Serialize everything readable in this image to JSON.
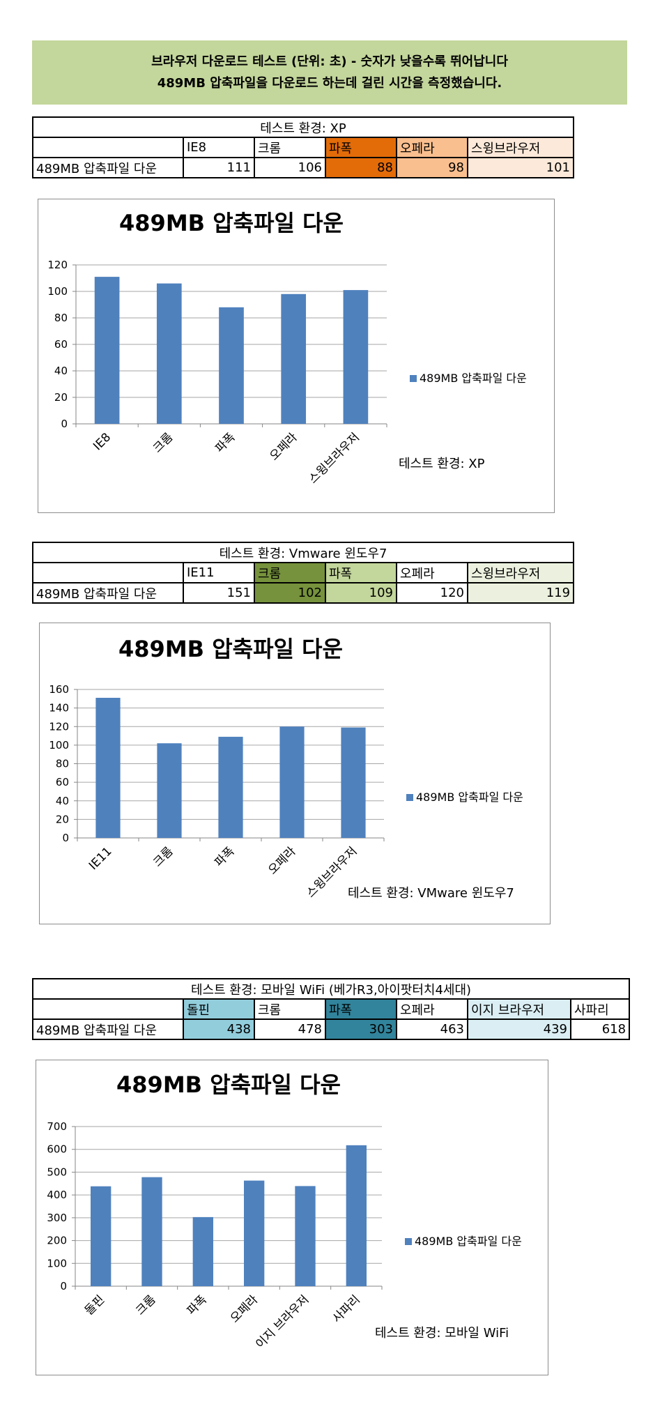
{
  "banner": {
    "line1": "브라우저 다운로드 테스트 (단위: 초) - 숫자가 낮을수록 뛰어납니다",
    "line2": "489MB 압축파일을 다운로드 하는데 걸린 시간을 측정했습니다."
  },
  "tables": [
    {
      "title": "테스트 환경: XP",
      "row_label": "489MB 압축파일 다운",
      "headers": [
        "IE8",
        "크롬",
        "파폭",
        "오페라",
        "스윙브라우저"
      ],
      "values": [
        "111",
        "106",
        "88",
        "98",
        "101"
      ],
      "highlight_colors": [
        "#ffffff",
        "#ffffff",
        "#e36c09",
        "#fabf8f",
        "#fde9d9"
      ]
    },
    {
      "title": "테스트 환경: Vmware 윈도우7",
      "row_label": "489MB 압축파일 다운",
      "headers": [
        "IE11",
        "크롬",
        "파폭",
        "오페라",
        "스윙브라우저"
      ],
      "values": [
        "151",
        "102",
        "109",
        "120",
        "119"
      ],
      "highlight_colors": [
        "#ffffff",
        "#76923c",
        "#c3d69b",
        "#ffffff",
        "#ebf1de"
      ]
    },
    {
      "title": "테스트 환경: 모바일 WiFi (베가R3,아이팟터치4세대)",
      "row_label": "489MB 압축파일 다운",
      "headers": [
        "돌핀",
        "크롬",
        "파폭",
        "오페라",
        "이지 브라우저",
        "사파리"
      ],
      "values": [
        "438",
        "478",
        "303",
        "463",
        "439",
        "618"
      ],
      "highlight_colors": [
        "#92cddc",
        "#ffffff",
        "#31849b",
        "#ffffff",
        "#daeef3",
        "#ffffff"
      ]
    }
  ],
  "chart_data": [
    {
      "type": "bar",
      "title": "489MB 압축파일 다운",
      "categories": [
        "IE8",
        "크롬",
        "파폭",
        "오페라",
        "스윙브라우저"
      ],
      "series": [
        {
          "name": "489MB 압축파일 다운",
          "values": [
            111,
            106,
            88,
            98,
            101
          ]
        }
      ],
      "ylim": [
        0,
        120
      ],
      "yticks": [
        0,
        20,
        40,
        60,
        80,
        100,
        120
      ],
      "note": "테스트 환경: XP",
      "bar_color": "#4f81bd",
      "legend": "right",
      "grid": true
    },
    {
      "type": "bar",
      "title": "489MB 압축파일 다운",
      "categories": [
        "IE11",
        "크롬",
        "파폭",
        "오페라",
        "스윙브라우저"
      ],
      "series": [
        {
          "name": "489MB 압축파일 다운",
          "values": [
            151,
            102,
            109,
            120,
            119
          ]
        }
      ],
      "ylim": [
        0,
        160
      ],
      "yticks": [
        0,
        20,
        40,
        60,
        80,
        100,
        120,
        140,
        160
      ],
      "note": "테스트 환경: VMware 윈도우7",
      "bar_color": "#4f81bd",
      "legend": "right",
      "grid": true
    },
    {
      "type": "bar",
      "title": "489MB 압축파일 다운",
      "categories": [
        "돌핀",
        "크롬",
        "파폭",
        "오페라",
        "이지 브라우저",
        "사파리"
      ],
      "series": [
        {
          "name": "489MB 압축파일 다운",
          "values": [
            438,
            478,
            303,
            463,
            439,
            618
          ]
        }
      ],
      "ylim": [
        0,
        700
      ],
      "yticks": [
        0,
        100,
        200,
        300,
        400,
        500,
        600,
        700
      ],
      "note": "테스트 환경: 모바일 WiFi",
      "bar_color": "#4f81bd",
      "legend": "right",
      "grid": true
    }
  ]
}
